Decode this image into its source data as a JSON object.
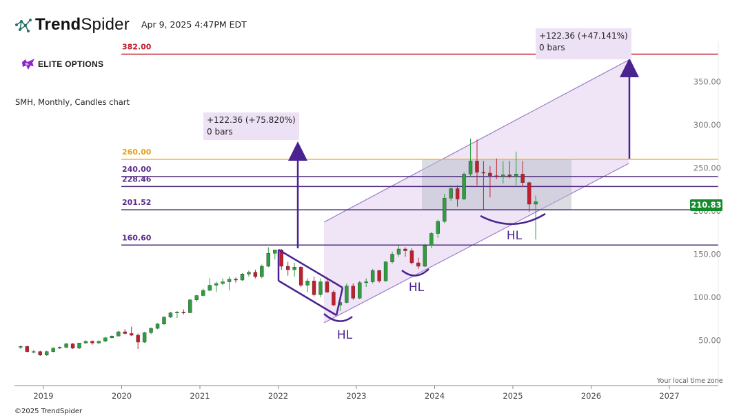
{
  "brand": {
    "name_bold": "Trend",
    "name_light": "Spider",
    "timestamp": "Apr 9, 2025 4:47PM EDT"
  },
  "overlay_logo": {
    "text": "ELITE OPTIONS"
  },
  "footer": {
    "copyright": "©2025 TrendSpider",
    "timezone": "Your local time zone"
  },
  "measures": [
    {
      "line1": "+122.36 (+75.820%)",
      "line2": "0 bars"
    },
    {
      "line1": "+122.36 (+47.141%)",
      "line2": "0 bars"
    }
  ],
  "last_price": "210.83",
  "colors": {
    "up": "#2e9e3e",
    "down": "#c0202e",
    "accent": "#4b2391",
    "level_purple": "#4b2a7a",
    "level_red": "#c0202e",
    "level_gold": "#f2b632",
    "price_tag": "#158a2c"
  },
  "chart_data": {
    "type": "candlestick",
    "title": "SMH, Monthly, Candles chart",
    "x_axis": {
      "type": "date",
      "ticks": [
        "2019",
        "2020",
        "2021",
        "2022",
        "2023",
        "2024",
        "2025",
        "2026",
        "2027"
      ]
    },
    "y_axis": {
      "ticks": [
        "50.00",
        "100.00",
        "150.00",
        "200.00",
        "250.00",
        "300.00",
        "350.00"
      ],
      "range": [
        10,
        390
      ]
    },
    "levels": [
      {
        "label": "382.00",
        "value": 382,
        "color": "#c0202e"
      },
      {
        "label": "260.00",
        "value": 260,
        "color": "#f2b632"
      },
      {
        "label": "240.00",
        "value": 240,
        "color": "#4b2a7a"
      },
      {
        "label": "228.46",
        "value": 228.46,
        "color": "#4b2a7a"
      },
      {
        "label": "201.52",
        "value": 201.52,
        "color": "#4b2a7a"
      },
      {
        "label": "160.60",
        "value": 160.6,
        "color": "#4b2a7a"
      }
    ],
    "annotations": [
      "HL",
      "HL",
      "HL"
    ],
    "series": [
      {
        "date": "2018-09",
        "o": 42,
        "h": 44,
        "l": 40,
        "c": 43
      },
      {
        "date": "2018-10",
        "o": 43,
        "h": 44,
        "l": 36,
        "c": 37
      },
      {
        "date": "2018-11",
        "o": 37,
        "h": 39,
        "l": 35,
        "c": 37
      },
      {
        "date": "2018-12",
        "o": 37,
        "h": 38,
        "l": 32,
        "c": 33
      },
      {
        "date": "2019-01",
        "o": 33,
        "h": 38,
        "l": 32,
        "c": 37
      },
      {
        "date": "2019-02",
        "o": 37,
        "h": 42,
        "l": 36,
        "c": 41
      },
      {
        "date": "2019-03",
        "o": 41,
        "h": 43,
        "l": 40,
        "c": 42
      },
      {
        "date": "2019-04",
        "o": 42,
        "h": 47,
        "l": 41,
        "c": 46
      },
      {
        "date": "2019-05",
        "o": 46,
        "h": 47,
        "l": 40,
        "c": 41
      },
      {
        "date": "2019-06",
        "o": 41,
        "h": 47,
        "l": 40,
        "c": 47
      },
      {
        "date": "2019-07",
        "o": 47,
        "h": 50,
        "l": 46,
        "c": 49
      },
      {
        "date": "2019-08",
        "o": 49,
        "h": 50,
        "l": 45,
        "c": 47
      },
      {
        "date": "2019-09",
        "o": 47,
        "h": 50,
        "l": 46,
        "c": 49
      },
      {
        "date": "2019-10",
        "o": 49,
        "h": 54,
        "l": 48,
        "c": 53
      },
      {
        "date": "2019-11",
        "o": 53,
        "h": 56,
        "l": 52,
        "c": 55
      },
      {
        "date": "2019-12",
        "o": 55,
        "h": 61,
        "l": 55,
        "c": 60
      },
      {
        "date": "2020-01",
        "o": 60,
        "h": 63,
        "l": 57,
        "c": 58
      },
      {
        "date": "2020-02",
        "o": 58,
        "h": 66,
        "l": 55,
        "c": 56
      },
      {
        "date": "2020-03",
        "o": 56,
        "h": 58,
        "l": 40,
        "c": 48
      },
      {
        "date": "2020-04",
        "o": 48,
        "h": 60,
        "l": 47,
        "c": 59
      },
      {
        "date": "2020-05",
        "o": 59,
        "h": 65,
        "l": 57,
        "c": 64
      },
      {
        "date": "2020-06",
        "o": 64,
        "h": 70,
        "l": 63,
        "c": 69
      },
      {
        "date": "2020-07",
        "o": 69,
        "h": 78,
        "l": 68,
        "c": 77
      },
      {
        "date": "2020-08",
        "o": 77,
        "h": 83,
        "l": 76,
        "c": 82
      },
      {
        "date": "2020-09",
        "o": 82,
        "h": 84,
        "l": 76,
        "c": 83
      },
      {
        "date": "2020-10",
        "o": 83,
        "h": 86,
        "l": 80,
        "c": 82
      },
      {
        "date": "2020-11",
        "o": 82,
        "h": 98,
        "l": 82,
        "c": 97
      },
      {
        "date": "2020-12",
        "o": 97,
        "h": 103,
        "l": 95,
        "c": 102
      },
      {
        "date": "2021-01",
        "o": 102,
        "h": 110,
        "l": 101,
        "c": 108
      },
      {
        "date": "2021-02",
        "o": 108,
        "h": 122,
        "l": 107,
        "c": 114
      },
      {
        "date": "2021-03",
        "o": 114,
        "h": 118,
        "l": 106,
        "c": 116
      },
      {
        "date": "2021-04",
        "o": 116,
        "h": 122,
        "l": 114,
        "c": 118
      },
      {
        "date": "2021-05",
        "o": 118,
        "h": 124,
        "l": 108,
        "c": 121
      },
      {
        "date": "2021-06",
        "o": 121,
        "h": 123,
        "l": 117,
        "c": 120
      },
      {
        "date": "2021-07",
        "o": 120,
        "h": 128,
        "l": 119,
        "c": 127
      },
      {
        "date": "2021-08",
        "o": 127,
        "h": 131,
        "l": 124,
        "c": 129
      },
      {
        "date": "2021-09",
        "o": 129,
        "h": 132,
        "l": 122,
        "c": 124
      },
      {
        "date": "2021-10",
        "o": 124,
        "h": 138,
        "l": 122,
        "c": 136
      },
      {
        "date": "2021-11",
        "o": 136,
        "h": 158,
        "l": 135,
        "c": 151
      },
      {
        "date": "2021-12",
        "o": 151,
        "h": 155,
        "l": 144,
        "c": 155
      },
      {
        "date": "2022-01",
        "o": 155,
        "h": 156,
        "l": 132,
        "c": 136
      },
      {
        "date": "2022-02",
        "o": 136,
        "h": 141,
        "l": 125,
        "c": 132
      },
      {
        "date": "2022-03",
        "o": 132,
        "h": 140,
        "l": 124,
        "c": 135
      },
      {
        "date": "2022-04",
        "o": 135,
        "h": 136,
        "l": 112,
        "c": 114
      },
      {
        "date": "2022-05",
        "o": 114,
        "h": 122,
        "l": 106,
        "c": 119
      },
      {
        "date": "2022-06",
        "o": 119,
        "h": 124,
        "l": 101,
        "c": 103
      },
      {
        "date": "2022-07",
        "o": 103,
        "h": 122,
        "l": 100,
        "c": 118
      },
      {
        "date": "2022-08",
        "o": 118,
        "h": 123,
        "l": 105,
        "c": 106
      },
      {
        "date": "2022-09",
        "o": 106,
        "h": 108,
        "l": 90,
        "c": 91
      },
      {
        "date": "2022-10",
        "o": 91,
        "h": 100,
        "l": 84,
        "c": 94
      },
      {
        "date": "2022-11",
        "o": 94,
        "h": 116,
        "l": 93,
        "c": 113
      },
      {
        "date": "2022-12",
        "o": 113,
        "h": 116,
        "l": 97,
        "c": 99
      },
      {
        "date": "2023-01",
        "o": 99,
        "h": 119,
        "l": 98,
        "c": 117
      },
      {
        "date": "2023-02",
        "o": 117,
        "h": 122,
        "l": 112,
        "c": 118
      },
      {
        "date": "2023-03",
        "o": 118,
        "h": 133,
        "l": 116,
        "c": 131
      },
      {
        "date": "2023-04",
        "o": 131,
        "h": 132,
        "l": 117,
        "c": 119
      },
      {
        "date": "2023-05",
        "o": 119,
        "h": 142,
        "l": 118,
        "c": 141
      },
      {
        "date": "2023-06",
        "o": 141,
        "h": 153,
        "l": 139,
        "c": 150
      },
      {
        "date": "2023-07",
        "o": 150,
        "h": 160,
        "l": 147,
        "c": 156
      },
      {
        "date": "2023-08",
        "o": 156,
        "h": 158,
        "l": 147,
        "c": 154
      },
      {
        "date": "2023-09",
        "o": 154,
        "h": 157,
        "l": 138,
        "c": 140
      },
      {
        "date": "2023-10",
        "o": 140,
        "h": 146,
        "l": 133,
        "c": 136
      },
      {
        "date": "2023-11",
        "o": 136,
        "h": 162,
        "l": 135,
        "c": 160
      },
      {
        "date": "2023-12",
        "o": 160,
        "h": 176,
        "l": 157,
        "c": 174
      },
      {
        "date": "2024-01",
        "o": 174,
        "h": 190,
        "l": 169,
        "c": 188
      },
      {
        "date": "2024-02",
        "o": 188,
        "h": 220,
        "l": 186,
        "c": 215
      },
      {
        "date": "2024-03",
        "o": 215,
        "h": 230,
        "l": 212,
        "c": 226
      },
      {
        "date": "2024-04",
        "o": 226,
        "h": 230,
        "l": 205,
        "c": 214
      },
      {
        "date": "2024-05",
        "o": 214,
        "h": 245,
        "l": 213,
        "c": 243
      },
      {
        "date": "2024-06",
        "o": 243,
        "h": 284,
        "l": 240,
        "c": 258
      },
      {
        "date": "2024-07",
        "o": 258,
        "h": 283,
        "l": 230,
        "c": 245
      },
      {
        "date": "2024-08",
        "o": 245,
        "h": 258,
        "l": 201,
        "c": 244
      },
      {
        "date": "2024-09",
        "o": 244,
        "h": 252,
        "l": 216,
        "c": 241
      },
      {
        "date": "2024-10",
        "o": 241,
        "h": 261,
        "l": 237,
        "c": 240
      },
      {
        "date": "2024-11",
        "o": 240,
        "h": 258,
        "l": 232,
        "c": 242
      },
      {
        "date": "2024-12",
        "o": 242,
        "h": 258,
        "l": 238,
        "c": 240
      },
      {
        "date": "2025-01",
        "o": 240,
        "h": 269,
        "l": 230,
        "c": 243
      },
      {
        "date": "2025-02",
        "o": 243,
        "h": 258,
        "l": 228,
        "c": 233
      },
      {
        "date": "2025-03",
        "o": 233,
        "h": 234,
        "l": 199,
        "c": 208
      },
      {
        "date": "2025-04",
        "o": 208,
        "h": 218,
        "l": 167,
        "c": 210.83
      }
    ]
  }
}
